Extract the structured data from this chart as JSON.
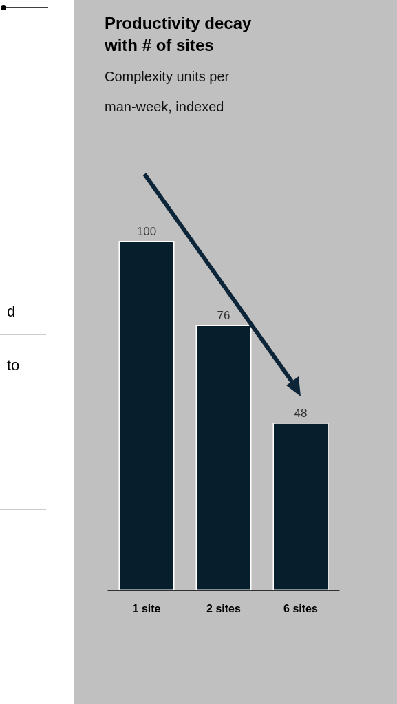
{
  "chart_data": {
    "type": "bar",
    "title": "Productivity decay with # of sites",
    "subtitle": "Complexity units per man-week, indexed",
    "categories": [
      "1 site",
      "2 sites",
      "6 sites"
    ],
    "values": [
      100,
      76,
      48
    ],
    "color": "#071e2d",
    "data_labels": true,
    "annotations": [
      "d",
      "to"
    ]
  }
}
